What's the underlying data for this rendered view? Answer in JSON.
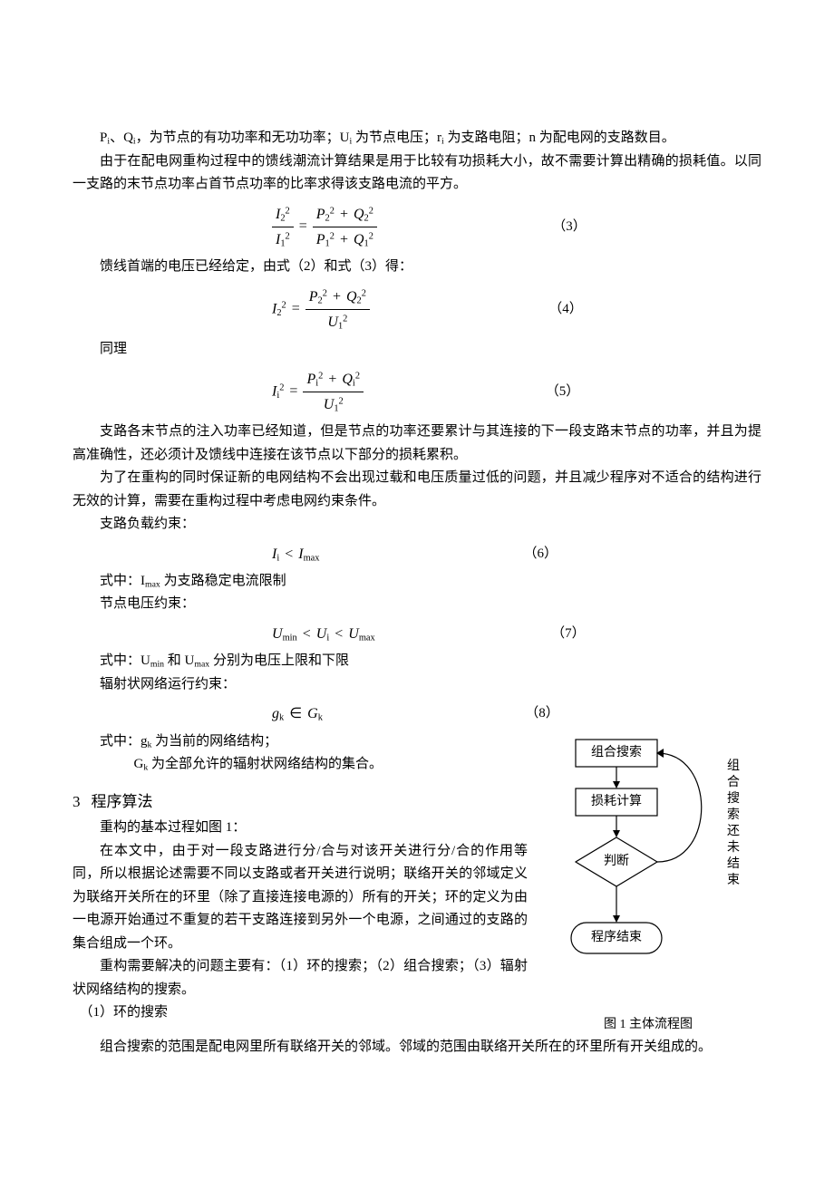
{
  "p1": "Pᵢ、Qᵢ，为节点的有功功率和无功功率；Uᵢ为节点电压；rᵢ为支路电阻；n 为配电网的支路数目。",
  "p2": "由于在配电网重构过程中的馈线潮流计算结果是用于比较有功损耗大小，故不需要计算出精确的损耗值。以同一支路的末节点功率占首节点功率的比率求得该支路电流的平方。",
  "eq3_num": "（3）",
  "p3": "馈线首端的电压已经给定，由式（2）和式（3）得：",
  "eq4_num": "（4）",
  "p4": "同理",
  "eq5_num": "（5）",
  "p5": "支路各末节点的注入功率已经知道，但是节点的功率还要累计与其连接的下一段支路末节点的功率，并且为提高准确性，还必须计及馈线中连接在该节点以下部分的损耗累积。",
  "p6": "为了在重构的同时保证新的电网结构不会出现过载和电压质量过低的问题，并且减少程序对不适合的结构进行无效的计算，需要在重构过程中考虑电网约束条件。",
  "p7": "支路负载约束：",
  "eq6_num": "（6）",
  "p8": "式中：I_max 为支路稳定电流限制",
  "p9": "节点电压约束：",
  "eq7_num": "（7）",
  "p10": "式中：U_min 和 U_max 分别为电压上限和下限",
  "p11": "辐射状网络运行约束：",
  "eq8_num": "（8）",
  "p12a": "式中：gₖ 为当前的网络结构；",
  "p12b": "Gₖ 为全部允许的辐射状网络结构的集合。",
  "sec_num": "3",
  "sec_title": "程序算法",
  "p13": "重构的基本过程如图 1：",
  "p14": "在本文中，由于对一段支路进行分/合与对该开关进行分/合的作用等同，所以根据论述需要不同以支路或者开关进行说明；联络开关的邻域定义为联络开关所在的环里（除了直接连接电源的）所有的开关；环的定义为由一电源开始通过不重复的若干支路连接到另外一个电源，之间通过的支路的集合组成一个环。",
  "p15": "重构需要解决的问题主要有：（1）环的搜索；（2）组合搜索；（3）辐射状网络结构的搜索。",
  "p16": "（1）环的搜索",
  "p17": "组合搜索的范围是配电网里所有联络开关的邻域。邻域的范围由联络开关所在的环里所有开关组成的。",
  "flowchart": {
    "node1": "组合搜索",
    "node2": "损耗计算",
    "node3": "判断",
    "node4": "程序结束",
    "loop_label": [
      "组",
      "合",
      "搜",
      "索",
      "还",
      "未",
      "结",
      "束"
    ],
    "caption": "图 1   主体流程图",
    "colors": {
      "stroke": "#000000",
      "bg": "#ffffff"
    }
  }
}
